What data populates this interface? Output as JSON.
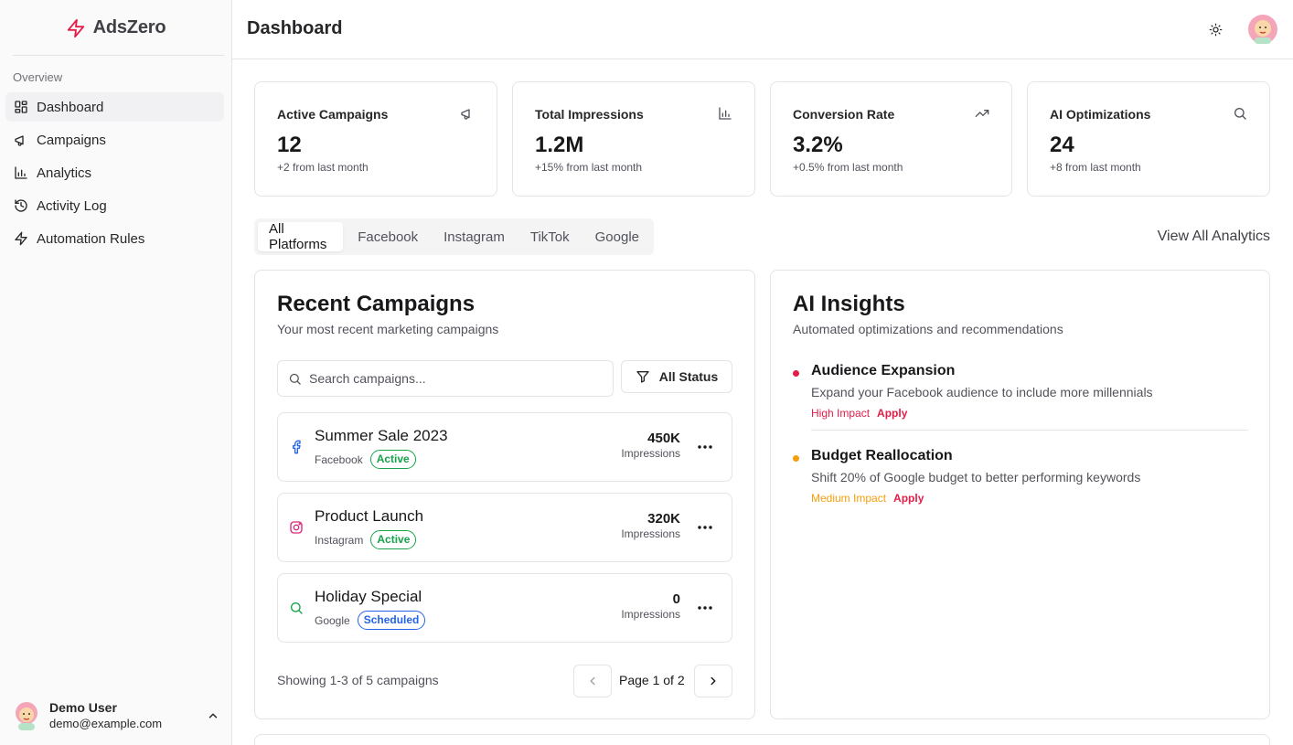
{
  "brand": {
    "name": "AdsZero",
    "color": "#e11d48"
  },
  "sidebar": {
    "section": "Overview",
    "items": [
      {
        "label": "Dashboard",
        "icon": "dashboard-icon",
        "active": true
      },
      {
        "label": "Campaigns",
        "icon": "megaphone-icon",
        "active": false
      },
      {
        "label": "Analytics",
        "icon": "bar-chart-icon",
        "active": false
      },
      {
        "label": "Activity Log",
        "icon": "history-icon",
        "active": false
      },
      {
        "label": "Automation Rules",
        "icon": "zap-icon",
        "active": false
      }
    ],
    "user": {
      "name": "Demo User",
      "email": "demo@example.com"
    }
  },
  "header": {
    "title": "Dashboard"
  },
  "stats": [
    {
      "title": "Active Campaigns",
      "value": "12",
      "sub": "+2 from last month",
      "icon": "megaphone-icon"
    },
    {
      "title": "Total Impressions",
      "value": "1.2M",
      "sub": "+15% from last month",
      "icon": "bar-chart-icon"
    },
    {
      "title": "Conversion Rate",
      "value": "3.2%",
      "sub": "+0.5% from last month",
      "icon": "trending-up-icon"
    },
    {
      "title": "AI Optimizations",
      "value": "24",
      "sub": "+8 from last month",
      "icon": "search-icon"
    }
  ],
  "tabs": [
    "All Platforms",
    "Facebook",
    "Instagram",
    "TikTok",
    "Google"
  ],
  "active_tab": "All Platforms",
  "view_all": "View All Analytics",
  "recent": {
    "title": "Recent Campaigns",
    "description": "Your most recent marketing campaigns",
    "search_placeholder": "Search campaigns...",
    "filter_label": "All Status",
    "campaigns": [
      {
        "name": "Summer Sale 2023",
        "platform": "Facebook",
        "status": "Active",
        "value": "450K",
        "unit": "Impressions"
      },
      {
        "name": "Product Launch",
        "platform": "Instagram",
        "status": "Active",
        "value": "320K",
        "unit": "Impressions"
      },
      {
        "name": "Holiday Special",
        "platform": "Google",
        "status": "Scheduled",
        "value": "0",
        "unit": "Impressions"
      }
    ],
    "showing": "Showing 1-3 of 5 campaigns",
    "page_label": "Page 1 of 2"
  },
  "insights": {
    "title": "AI Insights",
    "description": "Automated optimizations and recommendations",
    "items": [
      {
        "title": "Audience Expansion",
        "text": "Expand your Facebook audience to include more millennials",
        "impact": "High Impact",
        "impact_color": "#e11d48",
        "action": "Apply"
      },
      {
        "title": "Budget Reallocation",
        "text": "Shift 20% of Google budget to better performing keywords",
        "impact": "Medium Impact",
        "impact_color": "#f59e0b",
        "action": "Apply"
      }
    ]
  }
}
